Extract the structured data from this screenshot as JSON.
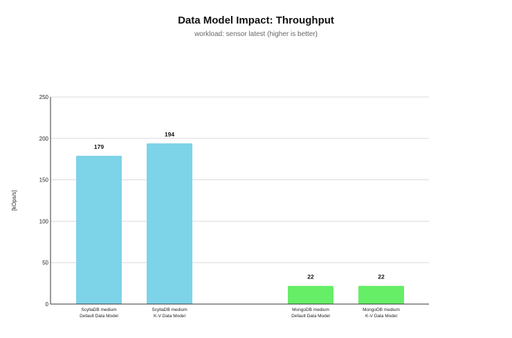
{
  "chart_data": {
    "type": "bar",
    "title": "Data Model Impact: Throughput",
    "subtitle": "workload: sensor latest (higher is better)",
    "xlabel": "",
    "ylabel": "[kOps/s]",
    "ylim": [
      0,
      250
    ],
    "yticks": [
      0,
      50,
      100,
      150,
      200,
      250
    ],
    "grid": true,
    "categories": [
      [
        "ScyllaDB medium",
        "Default Data Model"
      ],
      [
        "ScyllaDB medium",
        "K-V Data Model"
      ],
      [
        "MongoDB medium",
        "Default Data Model"
      ],
      [
        "MongoDB medium",
        "K-V Data Model"
      ]
    ],
    "values": [
      179,
      194,
      22,
      22
    ],
    "colors": [
      "#7dd3e8",
      "#7dd3e8",
      "#66ee66",
      "#66ee66"
    ]
  }
}
